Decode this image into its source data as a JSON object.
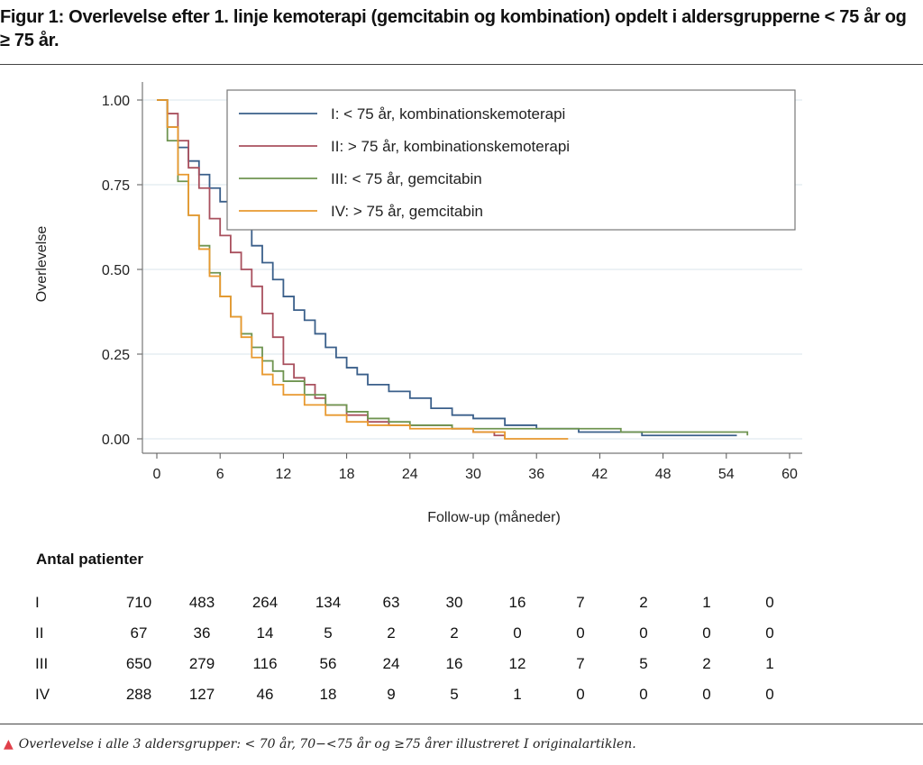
{
  "title": "Figur 1: Overlevelse efter 1. linje kemoterapi (gemcitabin og kombination) opdelt i aldersgrupperne < 75 år og ≥ 75 år.",
  "chart_data": {
    "type": "line",
    "title": "",
    "xlabel": "Follow-up (måneder)",
    "ylabel": "Overlevelse",
    "xlim": [
      0,
      60
    ],
    "ylim": [
      0,
      1
    ],
    "xticks": [
      "0",
      "6",
      "12",
      "18",
      "24",
      "30",
      "36",
      "42",
      "48",
      "54",
      "60"
    ],
    "yticks": [
      "0.00",
      "0.25",
      "0.50",
      "0.75",
      "1.00"
    ],
    "grid": true,
    "legend_position": "top-right",
    "series": [
      {
        "name": "I: < 75 år, kombinationskemoterapi",
        "color": "#3a5f8a",
        "x": [
          0,
          1,
          2,
          3,
          4,
          5,
          6,
          7,
          8,
          9,
          10,
          11,
          12,
          13,
          14,
          15,
          16,
          17,
          18,
          19,
          20,
          22,
          24,
          26,
          28,
          30,
          33,
          36,
          40,
          44,
          46,
          55
        ],
        "y": [
          1,
          0.92,
          0.86,
          0.82,
          0.78,
          0.74,
          0.7,
          0.66,
          0.62,
          0.57,
          0.52,
          0.47,
          0.42,
          0.38,
          0.35,
          0.31,
          0.27,
          0.24,
          0.21,
          0.19,
          0.16,
          0.14,
          0.12,
          0.09,
          0.07,
          0.06,
          0.04,
          0.03,
          0.02,
          0.02,
          0.01,
          0.01
        ]
      },
      {
        "name": "II: ≥ 75 år, kombinationskemoterapi",
        "color": "#a9505e",
        "x": [
          0,
          1,
          2,
          3,
          4,
          5,
          6,
          7,
          8,
          9,
          10,
          11,
          12,
          13,
          14,
          15,
          16,
          18,
          20,
          22,
          26,
          28,
          30,
          32,
          33
        ],
        "y": [
          1,
          0.96,
          0.88,
          0.8,
          0.74,
          0.65,
          0.6,
          0.55,
          0.5,
          0.45,
          0.37,
          0.3,
          0.22,
          0.18,
          0.16,
          0.12,
          0.1,
          0.07,
          0.05,
          0.04,
          0.04,
          0.03,
          0.02,
          0.01,
          0.0
        ]
      },
      {
        "name": "III: < 75 år, gemcitabin",
        "color": "#6f9450",
        "x": [
          0,
          1,
          2,
          3,
          4,
          5,
          6,
          7,
          8,
          9,
          10,
          11,
          12,
          14,
          16,
          18,
          20,
          22,
          24,
          28,
          36,
          44,
          56
        ],
        "y": [
          1,
          0.88,
          0.76,
          0.66,
          0.57,
          0.49,
          0.42,
          0.36,
          0.31,
          0.27,
          0.23,
          0.2,
          0.17,
          0.13,
          0.1,
          0.08,
          0.06,
          0.05,
          0.04,
          0.03,
          0.03,
          0.02,
          0.01
        ]
      },
      {
        "name": "IV: ≥ 75 år, gemcitabin",
        "color": "#e8992f",
        "x": [
          0,
          1,
          2,
          3,
          4,
          5,
          6,
          7,
          8,
          9,
          10,
          11,
          12,
          14,
          16,
          18,
          20,
          24,
          30,
          33,
          39
        ],
        "y": [
          1,
          0.92,
          0.78,
          0.66,
          0.56,
          0.48,
          0.42,
          0.36,
          0.3,
          0.24,
          0.19,
          0.16,
          0.13,
          0.1,
          0.07,
          0.05,
          0.04,
          0.03,
          0.02,
          0.0,
          0.0
        ]
      }
    ]
  },
  "legend_labels": [
    "I: < 75 år, kombinationskemoterapi",
    "II: > 75 år, kombinationskemoterapi",
    "III: < 75 år, gemcitabin",
    "IV: > 75 år, gemcitabin"
  ],
  "risk_table": {
    "title": "Antal patienter",
    "rows": [
      {
        "label": "I",
        "values": [
          "710",
          "483",
          "264",
          "134",
          "63",
          "30",
          "16",
          "7",
          "2",
          "1",
          "0"
        ]
      },
      {
        "label": "II",
        "values": [
          "67",
          "36",
          "14",
          "5",
          "2",
          "2",
          "0",
          "0",
          "0",
          "0",
          "0"
        ]
      },
      {
        "label": "III",
        "values": [
          "650",
          "279",
          "116",
          "56",
          "24",
          "16",
          "12",
          "7",
          "5",
          "2",
          "1"
        ]
      },
      {
        "label": "IV",
        "values": [
          "288",
          "127",
          "46",
          "18",
          "9",
          "5",
          "1",
          "0",
          "0",
          "0",
          "0"
        ]
      }
    ]
  },
  "note": "Overlevelse i alle 3 aldersgrupper: < 70 år, 70−<75 år og ≥75 årer illustreret I originalartiklen.",
  "note_icon": "triangle-icon"
}
